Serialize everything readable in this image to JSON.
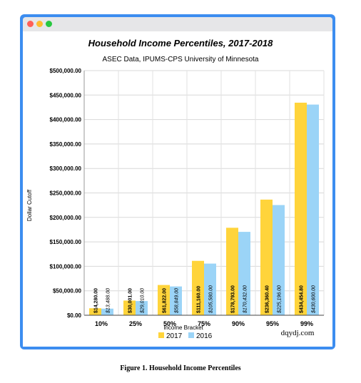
{
  "caption": "Figure 1. Household Income Percentiles",
  "watermark": "dqydj.com",
  "chart_data": {
    "type": "bar",
    "title": "Household Income Percentiles, 2017-2018",
    "subtitle": "ASEC Data, IPUMS-CPS University of Minnesota",
    "xlabel": "Income Bracket",
    "ylabel": "Dollar Cutoff",
    "ylim": [
      0,
      500000
    ],
    "yticks": [
      "$0.00",
      "$50,000.00",
      "$100,000.00",
      "$150,000.00",
      "$200,000.00",
      "$250,000.00",
      "$300,000.00",
      "$350,000.00",
      "$400,000.00",
      "$450,000.00",
      "$500,000.00"
    ],
    "grid": true,
    "legend_position": "bottom",
    "categories": [
      "10%",
      "25%",
      "50%",
      "75%",
      "90%",
      "95%",
      "99%"
    ],
    "series": [
      {
        "name": "2017",
        "color": "#ffd43b",
        "values": [
          14280,
          30001,
          61822,
          111160,
          178793,
          236360.4,
          434454.8
        ],
        "labels": [
          "$14,280.00",
          "$30,001.00",
          "$61,822.00",
          "$111,160.00",
          "$178,793.00",
          "$236,360.40",
          "$434,454.80"
        ]
      },
      {
        "name": "2016",
        "color": "#9bd4f7",
        "values": [
          13488,
          29010,
          58849,
          105580,
          170432,
          225196,
          430600
        ],
        "labels": [
          "$13,488.00",
          "$29,010.00",
          "$58,849.00",
          "$105,580.00",
          "$170,432.00",
          "$225,196.00",
          "$430,600.00"
        ]
      }
    ]
  }
}
